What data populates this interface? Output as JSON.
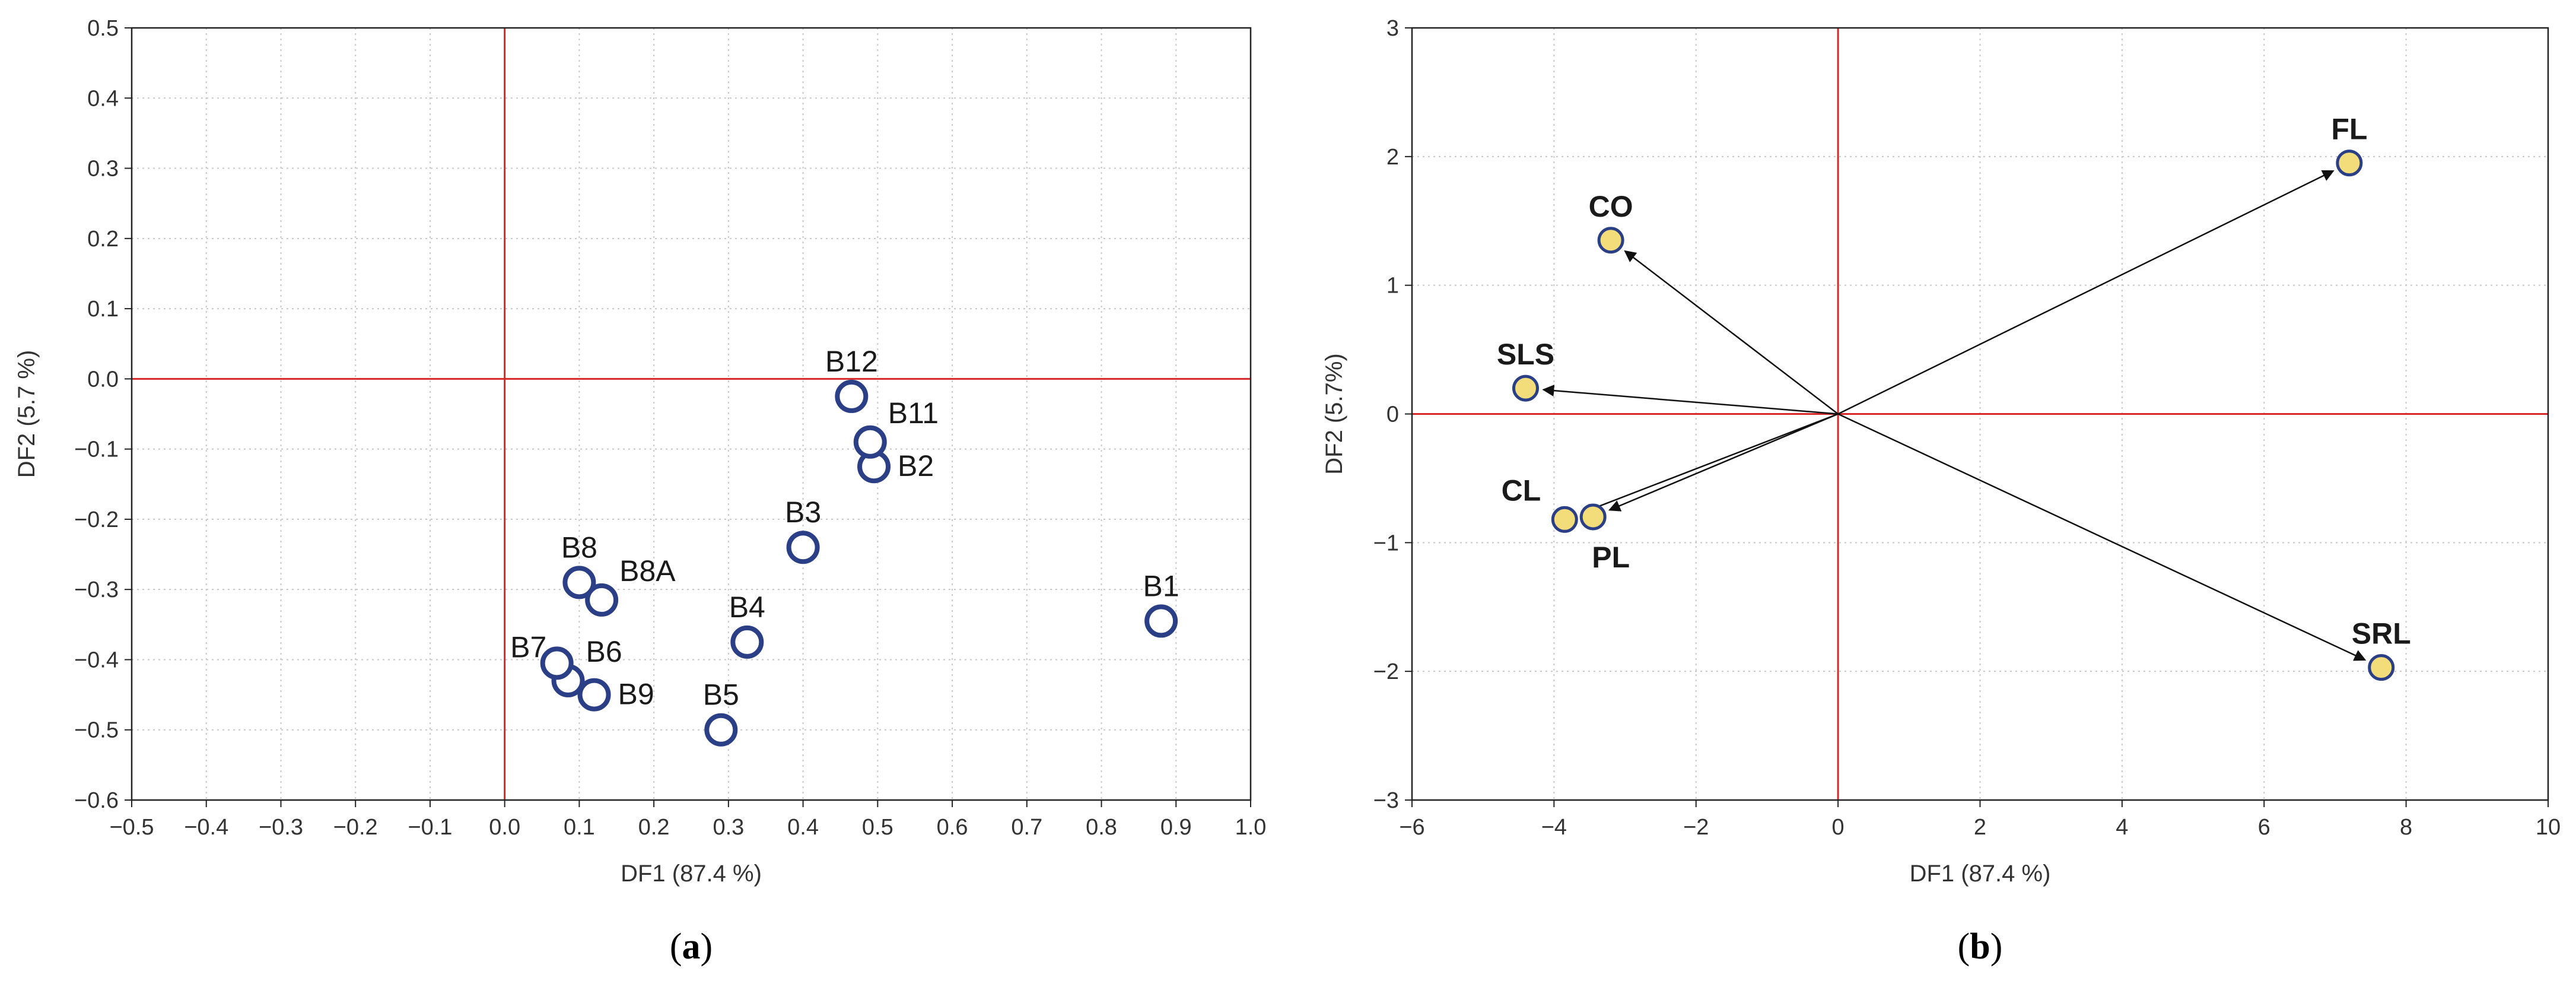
{
  "colors": {
    "zero_line": "#d62728",
    "grid": "#c8c8c8",
    "frame": "#222222",
    "marker_a_stroke": "#2b3f86",
    "marker_b_fill": "#f3dc7a",
    "marker_b_stroke": "#2b3f86",
    "arrow": "#111111"
  },
  "chart_data": [
    {
      "type": "scatter",
      "panel": "a",
      "panel_label": {
        "open": "(",
        "letter": "a",
        "close": ")"
      },
      "xlabel": "DF1 (87.4 %)",
      "ylabel": "DF2 (5.7 %)",
      "xlim": [
        -0.5,
        1.0
      ],
      "ylim": [
        -0.6,
        0.5
      ],
      "xticks": [
        -0.5,
        -0.4,
        -0.3,
        -0.2,
        -0.1,
        0.0,
        0.1,
        0.2,
        0.3,
        0.4,
        0.5,
        0.6,
        0.7,
        0.8,
        0.9,
        1.0
      ],
      "xtick_labels": [
        "−0.5",
        "−0.4",
        "−0.3",
        "−0.2",
        "−0.1",
        "0.0",
        "0.1",
        "0.2",
        "0.3",
        "0.4",
        "0.5",
        "0.6",
        "0.7",
        "0.8",
        "0.9",
        "1.0"
      ],
      "yticks": [
        0.5,
        0.4,
        0.3,
        0.2,
        0.1,
        0.0,
        -0.1,
        -0.2,
        -0.3,
        -0.4,
        -0.5,
        -0.6
      ],
      "ytick_labels": [
        "0.5",
        "0.4",
        "0.3",
        "0.2",
        "0.1",
        "0.0",
        "−0.1",
        "−0.2",
        "−0.3",
        "−0.4",
        "−0.5",
        "−0.6"
      ],
      "grid": true,
      "points": [
        {
          "label": "B1",
          "x": 0.88,
          "y": -0.345,
          "label_pos": "above"
        },
        {
          "label": "B2",
          "x": 0.495,
          "y": -0.125,
          "label_pos": "right"
        },
        {
          "label": "B3",
          "x": 0.4,
          "y": -0.24,
          "label_pos": "above"
        },
        {
          "label": "B4",
          "x": 0.325,
          "y": -0.375,
          "label_pos": "above"
        },
        {
          "label": "B5",
          "x": 0.29,
          "y": -0.5,
          "label_pos": "above"
        },
        {
          "label": "B6",
          "x": 0.085,
          "y": -0.43,
          "label_pos": "above-right"
        },
        {
          "label": "B7",
          "x": 0.07,
          "y": -0.405,
          "label_pos": "above-left"
        },
        {
          "label": "B8",
          "x": 0.1,
          "y": -0.29,
          "label_pos": "above"
        },
        {
          "label": "B8A",
          "x": 0.13,
          "y": -0.315,
          "label_pos": "above-right"
        },
        {
          "label": "B9",
          "x": 0.12,
          "y": -0.45,
          "label_pos": "right"
        },
        {
          "label": "B11",
          "x": 0.49,
          "y": -0.09,
          "label_pos": "above-right"
        },
        {
          "label": "B12",
          "x": 0.465,
          "y": -0.025,
          "label_pos": "above"
        }
      ]
    },
    {
      "type": "scatter",
      "panel": "b",
      "panel_label": {
        "open": "(",
        "letter": "b",
        "close": ")"
      },
      "xlabel": "DF1 (87.4 %)",
      "ylabel": "DF2 (5.7%)",
      "xlim": [
        -6,
        10
      ],
      "ylim": [
        -3,
        3
      ],
      "xticks": [
        -6,
        -4,
        -2,
        0,
        2,
        4,
        6,
        8,
        10
      ],
      "xtick_labels": [
        "−6",
        "−4",
        "−2",
        "0",
        "2",
        "4",
        "6",
        "8",
        "10"
      ],
      "yticks": [
        3,
        2,
        1,
        0,
        -1,
        -2,
        -3
      ],
      "ytick_labels": [
        "3",
        "2",
        "1",
        "0",
        "−1",
        "−2",
        "−3"
      ],
      "grid": true,
      "vectors_from_origin": true,
      "points": [
        {
          "label": "FL",
          "x": 7.2,
          "y": 1.95,
          "label_pos": "above"
        },
        {
          "label": "CO",
          "x": -3.2,
          "y": 1.35,
          "label_pos": "above"
        },
        {
          "label": "SLS",
          "x": -4.4,
          "y": 0.2,
          "label_pos": "above"
        },
        {
          "label": "CL",
          "x": -3.85,
          "y": -0.82,
          "label_pos": "above-left"
        },
        {
          "label": "PL",
          "x": -3.45,
          "y": -0.8,
          "label_pos": "below-right"
        },
        {
          "label": "SRL",
          "x": 7.65,
          "y": -1.97,
          "label_pos": "above"
        }
      ]
    }
  ]
}
